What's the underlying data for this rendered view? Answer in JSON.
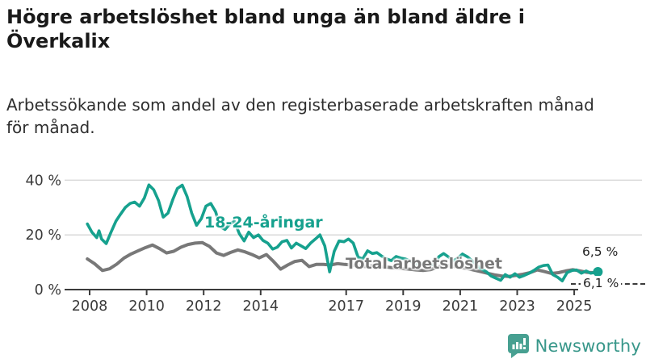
{
  "header": {
    "title": "Högre arbetslöshet bland unga än bland äldre i Överkalix",
    "title_lines": [
      "Högre arbetslöshet bland unga än bland äldre i",
      "Överkalix"
    ],
    "subtitle": "Arbetssökande som andel av den registerbaserade arbetskraften månad för månad.",
    "subtitle_lines": [
      "Arbetssökande som andel av den registerbaserade arbetskraften månad",
      "för månad."
    ]
  },
  "branding": {
    "logo_text": "Newsworthy",
    "logo_color": "#38978a",
    "logo_icon": "bar-chart-speech-bubble"
  },
  "colors": {
    "youth_line": "#16a18e",
    "total_line": "#787878",
    "grid": "#d9d9d9",
    "axis": "#3c3c3c",
    "text": "#1a1a1a"
  },
  "chart_data": {
    "type": "line",
    "title": "Högre arbetslöshet bland unga än bland äldre i Överkalix",
    "xlabel": "",
    "ylabel": "",
    "ylim": [
      0,
      44
    ],
    "xlim": [
      2007.9,
      2026.0
    ],
    "grid": "horizontal",
    "legend_position": "inline-annotations",
    "y_ticks": [
      {
        "value": 0,
        "label": "0 %"
      },
      {
        "value": 20,
        "label": "20 %"
      },
      {
        "value": 40,
        "label": "40 %"
      }
    ],
    "x_ticks": [
      {
        "year": 2008,
        "label": "2008"
      },
      {
        "year": 2010,
        "label": "2010"
      },
      {
        "year": 2012,
        "label": "2012"
      },
      {
        "year": 2014,
        "label": "2014"
      },
      {
        "year": 2017,
        "label": "2017"
      },
      {
        "year": 2019,
        "label": "2019"
      },
      {
        "year": 2021,
        "label": "2021"
      },
      {
        "year": 2023,
        "label": "2023"
      },
      {
        "year": 2025,
        "label": "2025"
      }
    ],
    "series": [
      {
        "name": "Total arbetslöshet",
        "color": "#787878",
        "end_label": "6,1 %",
        "end_value": 6.1,
        "x": [
          2007.92,
          2008.17,
          2008.45,
          2008.7,
          2008.95,
          2009.2,
          2009.45,
          2009.7,
          2009.95,
          2010.2,
          2010.45,
          2010.7,
          2010.95,
          2011.2,
          2011.45,
          2011.7,
          2011.95,
          2012.2,
          2012.45,
          2012.7,
          2012.95,
          2013.2,
          2013.45,
          2013.7,
          2013.95,
          2014.2,
          2014.45,
          2014.7,
          2014.95,
          2015.2,
          2015.45,
          2015.7,
          2015.95,
          2016.2,
          2016.45,
          2016.7,
          2016.95,
          2017.2,
          2017.45,
          2017.7,
          2017.95,
          2018.2,
          2018.45,
          2018.7,
          2018.95,
          2019.2,
          2019.45,
          2019.7,
          2019.95,
          2020.2,
          2020.45,
          2020.7,
          2020.95,
          2021.2,
          2021.45,
          2021.7,
          2021.95,
          2022.2,
          2022.45,
          2022.7,
          2022.95,
          2023.2,
          2023.45,
          2023.7,
          2023.95,
          2024.2,
          2024.45,
          2024.7,
          2024.95,
          2025.2,
          2025.45,
          2025.83
        ],
        "values": [
          11.2,
          9.5,
          7.0,
          7.6,
          9.3,
          11.5,
          13.0,
          14.2,
          15.3,
          16.3,
          15.0,
          13.4,
          14.0,
          15.5,
          16.5,
          17.0,
          17.2,
          15.8,
          13.4,
          12.5,
          13.6,
          14.5,
          13.8,
          12.8,
          11.6,
          12.8,
          10.3,
          7.5,
          9.0,
          10.3,
          10.7,
          8.4,
          9.2,
          9.2,
          9.0,
          9.5,
          9.2,
          9.0,
          8.6,
          8.4,
          8.8,
          8.5,
          8.2,
          7.9,
          7.7,
          7.5,
          7.2,
          7.0,
          7.3,
          8.2,
          9.0,
          8.6,
          8.2,
          7.8,
          7.2,
          6.6,
          6.0,
          5.4,
          5.0,
          4.8,
          5.2,
          5.6,
          6.2,
          7.2,
          6.6,
          5.9,
          6.2,
          6.8,
          7.3,
          6.8,
          6.3,
          6.1
        ]
      },
      {
        "name": "18-24-åringar",
        "color": "#16a18e",
        "end_label": "6,5 %",
        "end_value": 6.5,
        "end_dot": true,
        "x": [
          2007.92,
          2008.08,
          2008.25,
          2008.33,
          2008.42,
          2008.58,
          2008.75,
          2008.92,
          2009.08,
          2009.25,
          2009.42,
          2009.58,
          2009.75,
          2009.92,
          2010.08,
          2010.25,
          2010.42,
          2010.58,
          2010.75,
          2010.92,
          2011.08,
          2011.25,
          2011.42,
          2011.58,
          2011.75,
          2011.92,
          2012.08,
          2012.25,
          2012.42,
          2012.58,
          2012.75,
          2012.92,
          2013.08,
          2013.25,
          2013.42,
          2013.58,
          2013.75,
          2013.92,
          2014.08,
          2014.25,
          2014.42,
          2014.58,
          2014.75,
          2014.92,
          2015.08,
          2015.25,
          2015.42,
          2015.58,
          2015.75,
          2015.92,
          2016.08,
          2016.25,
          2016.42,
          2016.58,
          2016.75,
          2016.92,
          2017.08,
          2017.25,
          2017.42,
          2017.58,
          2017.75,
          2017.92,
          2018.08,
          2018.25,
          2018.42,
          2018.58,
          2018.75,
          2018.92,
          2019.08,
          2019.25,
          2019.42,
          2019.58,
          2019.75,
          2019.92,
          2020.08,
          2020.25,
          2020.42,
          2020.58,
          2020.75,
          2020.92,
          2021.08,
          2021.25,
          2021.42,
          2021.58,
          2021.75,
          2021.92,
          2022.08,
          2022.25,
          2022.42,
          2022.58,
          2022.75,
          2022.92,
          2023.08,
          2023.25,
          2023.42,
          2023.58,
          2023.75,
          2023.92,
          2024.08,
          2024.25,
          2024.42,
          2024.58,
          2024.75,
          2024.92,
          2025.08,
          2025.25,
          2025.42,
          2025.58,
          2025.83
        ],
        "values": [
          24,
          21,
          19,
          21.5,
          18.5,
          16.8,
          21,
          25,
          27.5,
          30,
          31.5,
          32,
          30.5,
          33.5,
          38.3,
          36.5,
          32.5,
          26.5,
          28,
          33,
          37,
          38.2,
          34,
          28,
          23.5,
          26,
          30.5,
          31.5,
          28.5,
          23,
          22,
          24,
          25,
          20.5,
          17.8,
          21,
          19,
          20,
          18,
          17,
          14.8,
          15.5,
          17.5,
          18,
          15.2,
          17,
          16,
          15,
          17,
          18.5,
          20,
          16,
          6.5,
          14,
          17.8,
          17.5,
          18.5,
          17,
          11.8,
          11.2,
          14.2,
          13.2,
          13.5,
          12.2,
          11.2,
          10.6,
          12.1,
          11.5,
          11.2,
          10.4,
          9.6,
          9.0,
          10.0,
          9.4,
          9.0,
          12.0,
          13.2,
          12.0,
          10.5,
          11.5,
          13.0,
          12.0,
          10.5,
          9.0,
          7.5,
          6.5,
          5.0,
          4.2,
          3.4,
          5.5,
          4.5,
          5.8,
          4.5,
          5.2,
          6.0,
          7.0,
          8.2,
          8.8,
          9.0,
          5.5,
          4.5,
          3.2,
          6.2,
          7.0,
          7.2,
          6.0,
          6.8,
          6.0,
          6.5
        ]
      }
    ],
    "annotations": [
      {
        "text": "18-24-åringar",
        "series": "18-24-åringar"
      },
      {
        "text": "Total arbetslöshet",
        "series": "Total arbetslöshet"
      }
    ]
  }
}
